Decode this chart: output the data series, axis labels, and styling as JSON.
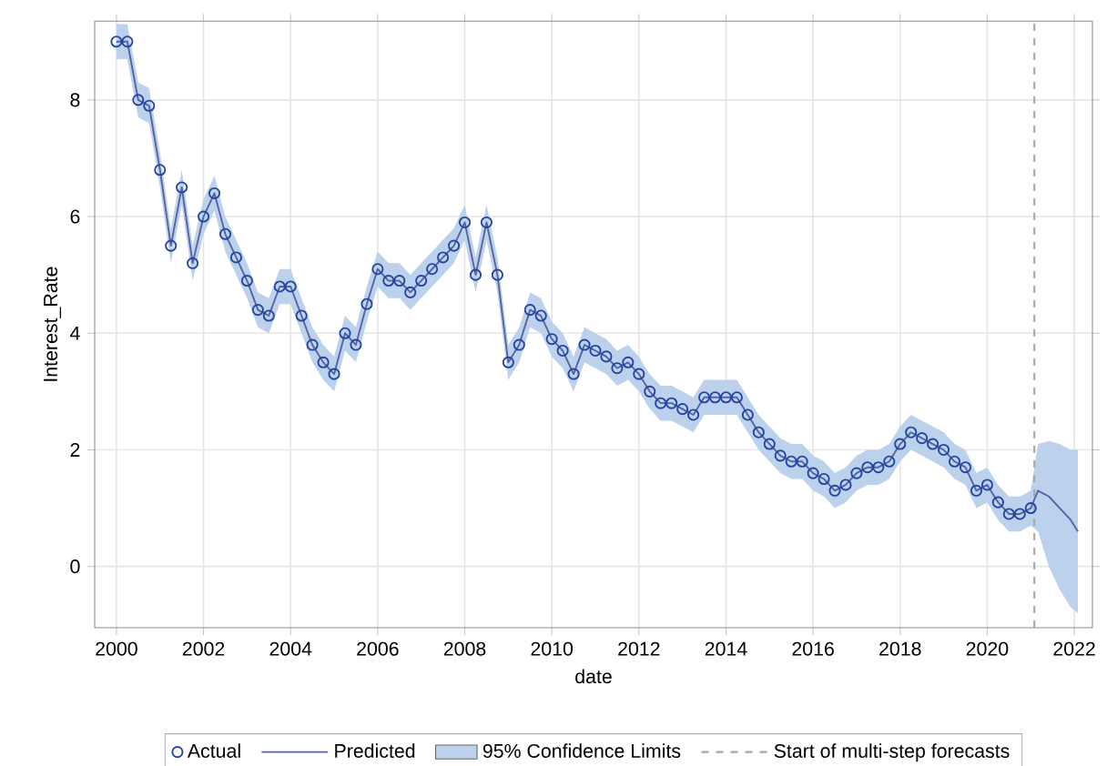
{
  "chart_data": {
    "type": "scatter",
    "xlabel": "date",
    "ylabel": "Interest_Rate",
    "x": [
      "2000-01",
      "2000-04",
      "2000-07",
      "2000-10",
      "2001-01",
      "2001-04",
      "2001-07",
      "2001-10",
      "2002-01",
      "2002-04",
      "2002-07",
      "2002-10",
      "2003-01",
      "2003-04",
      "2003-07",
      "2003-10",
      "2004-01",
      "2004-04",
      "2004-07",
      "2004-10",
      "2005-01",
      "2005-04",
      "2005-07",
      "2005-10",
      "2006-01",
      "2006-04",
      "2006-07",
      "2006-10",
      "2007-01",
      "2007-04",
      "2007-07",
      "2007-10",
      "2008-01",
      "2008-04",
      "2008-07",
      "2008-10",
      "2009-01",
      "2009-04",
      "2009-07",
      "2009-10",
      "2010-01",
      "2010-04",
      "2010-07",
      "2010-10",
      "2011-01",
      "2011-04",
      "2011-07",
      "2011-10",
      "2012-01",
      "2012-04",
      "2012-07",
      "2012-10",
      "2013-01",
      "2013-04",
      "2013-07",
      "2013-10",
      "2014-01",
      "2014-04",
      "2014-07",
      "2014-10",
      "2015-01",
      "2015-04",
      "2015-07",
      "2015-10",
      "2016-01",
      "2016-04",
      "2016-07",
      "2016-10",
      "2017-01",
      "2017-04",
      "2017-07",
      "2017-10",
      "2018-01",
      "2018-04",
      "2018-07",
      "2018-10",
      "2019-01",
      "2019-04",
      "2019-07",
      "2019-10",
      "2020-01",
      "2020-04",
      "2020-07",
      "2020-10",
      "2021-01",
      "2021-03",
      "2021-06",
      "2021-09",
      "2021-12",
      "2022-02"
    ],
    "series": [
      {
        "name": "Actual",
        "marker": "circle",
        "color": "#2344a3",
        "values": [
          9.0,
          9.0,
          8.0,
          7.9,
          6.8,
          5.5,
          6.5,
          5.2,
          6.0,
          6.4,
          5.7,
          5.3,
          4.9,
          4.4,
          4.3,
          4.8,
          4.8,
          4.3,
          3.8,
          3.5,
          3.3,
          4.0,
          3.8,
          4.5,
          5.1,
          4.9,
          4.9,
          4.7,
          4.9,
          5.1,
          5.3,
          5.5,
          5.9,
          5.0,
          5.9,
          5.0,
          3.5,
          3.8,
          4.4,
          4.3,
          3.9,
          3.7,
          3.3,
          3.8,
          3.7,
          3.6,
          3.4,
          3.5,
          3.3,
          3.0,
          2.8,
          2.8,
          2.7,
          2.6,
          2.9,
          2.9,
          2.9,
          2.9,
          2.6,
          2.3,
          2.1,
          1.9,
          1.8,
          1.8,
          1.6,
          1.5,
          1.3,
          1.4,
          1.6,
          1.7,
          1.7,
          1.8,
          2.1,
          2.3,
          2.2,
          2.1,
          2.0,
          1.8,
          1.7,
          1.3,
          1.4,
          1.1,
          0.9,
          0.9,
          1.0,
          null,
          null,
          null,
          null,
          null
        ]
      },
      {
        "name": "Predicted",
        "type": "line",
        "color": "#5563a3",
        "values": [
          9.0,
          9.0,
          8.0,
          7.9,
          6.8,
          5.5,
          6.5,
          5.2,
          6.0,
          6.4,
          5.7,
          5.3,
          4.9,
          4.4,
          4.3,
          4.8,
          4.8,
          4.3,
          3.8,
          3.5,
          3.3,
          4.0,
          3.8,
          4.5,
          5.1,
          4.9,
          4.9,
          4.7,
          4.9,
          5.1,
          5.3,
          5.5,
          5.9,
          5.0,
          5.9,
          5.0,
          3.5,
          3.8,
          4.4,
          4.3,
          3.9,
          3.7,
          3.3,
          3.8,
          3.7,
          3.6,
          3.4,
          3.5,
          3.3,
          3.0,
          2.8,
          2.8,
          2.7,
          2.6,
          2.9,
          2.9,
          2.9,
          2.9,
          2.6,
          2.3,
          2.1,
          1.9,
          1.8,
          1.8,
          1.6,
          1.5,
          1.3,
          1.4,
          1.6,
          1.7,
          1.7,
          1.8,
          2.1,
          2.3,
          2.2,
          2.1,
          2.0,
          1.8,
          1.7,
          1.3,
          1.4,
          1.1,
          0.9,
          0.9,
          1.0,
          1.3,
          1.2,
          1.0,
          0.8,
          0.6
        ]
      },
      {
        "name": "95% Confidence Limits",
        "type": "area",
        "color": "#bcd1ec",
        "values": [
          null,
          null,
          null,
          null,
          null,
          null,
          null,
          null,
          null,
          null,
          null,
          null,
          null,
          null,
          null,
          null,
          null,
          null,
          null,
          null,
          null,
          null,
          null,
          null,
          null,
          null,
          null,
          null,
          null,
          null,
          null,
          null,
          null,
          null,
          null,
          null,
          null,
          null,
          null,
          null,
          null,
          null,
          null,
          null,
          null,
          null,
          null,
          null,
          null,
          null,
          null,
          null,
          null,
          null,
          null,
          null,
          null,
          null,
          null,
          null,
          null,
          null,
          null,
          null,
          null,
          null,
          null,
          null,
          null,
          null,
          null,
          null,
          null,
          null,
          null,
          null,
          null,
          null,
          null,
          null,
          null,
          null,
          null,
          null,
          null,
          null,
          null,
          null,
          null,
          null
        ],
        "lower": [
          8.7,
          8.7,
          7.7,
          7.6,
          6.5,
          5.2,
          6.2,
          4.9,
          5.7,
          6.1,
          5.4,
          5.0,
          4.6,
          4.1,
          4.0,
          4.5,
          4.5,
          4.0,
          3.5,
          3.2,
          3.0,
          3.7,
          3.5,
          4.2,
          4.8,
          4.6,
          4.6,
          4.4,
          4.6,
          4.8,
          5.0,
          5.2,
          5.6,
          4.7,
          5.6,
          4.7,
          3.2,
          3.5,
          4.1,
          4.0,
          3.6,
          3.4,
          3.0,
          3.5,
          3.4,
          3.3,
          3.1,
          3.2,
          3.0,
          2.7,
          2.5,
          2.5,
          2.4,
          2.3,
          2.6,
          2.6,
          2.6,
          2.6,
          2.3,
          2.0,
          1.8,
          1.6,
          1.5,
          1.5,
          1.3,
          1.2,
          1.0,
          1.1,
          1.3,
          1.4,
          1.4,
          1.5,
          1.8,
          2.0,
          1.9,
          1.8,
          1.7,
          1.5,
          1.4,
          1.0,
          1.1,
          0.8,
          0.6,
          0.6,
          0.7,
          0.6,
          0.0,
          -0.4,
          -0.7,
          -0.8
        ],
        "upper": [
          9.3,
          9.3,
          8.3,
          8.2,
          7.1,
          5.8,
          6.8,
          5.5,
          6.3,
          6.7,
          6.0,
          5.6,
          5.2,
          4.7,
          4.6,
          5.1,
          5.1,
          4.6,
          4.1,
          3.8,
          3.6,
          4.3,
          4.1,
          4.8,
          5.4,
          5.2,
          5.2,
          5.0,
          5.2,
          5.4,
          5.6,
          5.8,
          6.2,
          5.3,
          6.2,
          5.3,
          3.8,
          4.1,
          4.7,
          4.6,
          4.2,
          4.0,
          3.6,
          4.1,
          4.0,
          3.9,
          3.7,
          3.8,
          3.6,
          3.3,
          3.1,
          3.1,
          3.0,
          2.9,
          3.2,
          3.2,
          3.2,
          3.2,
          2.9,
          2.6,
          2.4,
          2.2,
          2.1,
          2.1,
          1.9,
          1.8,
          1.6,
          1.7,
          1.9,
          2.0,
          2.0,
          2.1,
          2.4,
          2.6,
          2.5,
          2.4,
          2.3,
          2.1,
          2.0,
          1.6,
          1.7,
          1.4,
          1.2,
          1.2,
          1.3,
          2.1,
          2.15,
          2.1,
          2.0,
          2.0
        ]
      }
    ],
    "ref_lines": [
      {
        "axis": "x",
        "value": "2021-02",
        "label": "Start of multi-step forecasts",
        "color": "#a6a6a6",
        "line_style": "dashed"
      }
    ],
    "xlim": [
      "1999-07",
      "2022-06"
    ],
    "xticks": [
      "2000",
      "2002",
      "2004",
      "2006",
      "2008",
      "2010",
      "2012",
      "2014",
      "2016",
      "2018",
      "2020",
      "2022"
    ],
    "ylim": [
      -1.05,
      9.35
    ],
    "yticks": [
      0,
      2,
      4,
      6,
      8
    ],
    "grid": true,
    "legend": "bottom"
  }
}
